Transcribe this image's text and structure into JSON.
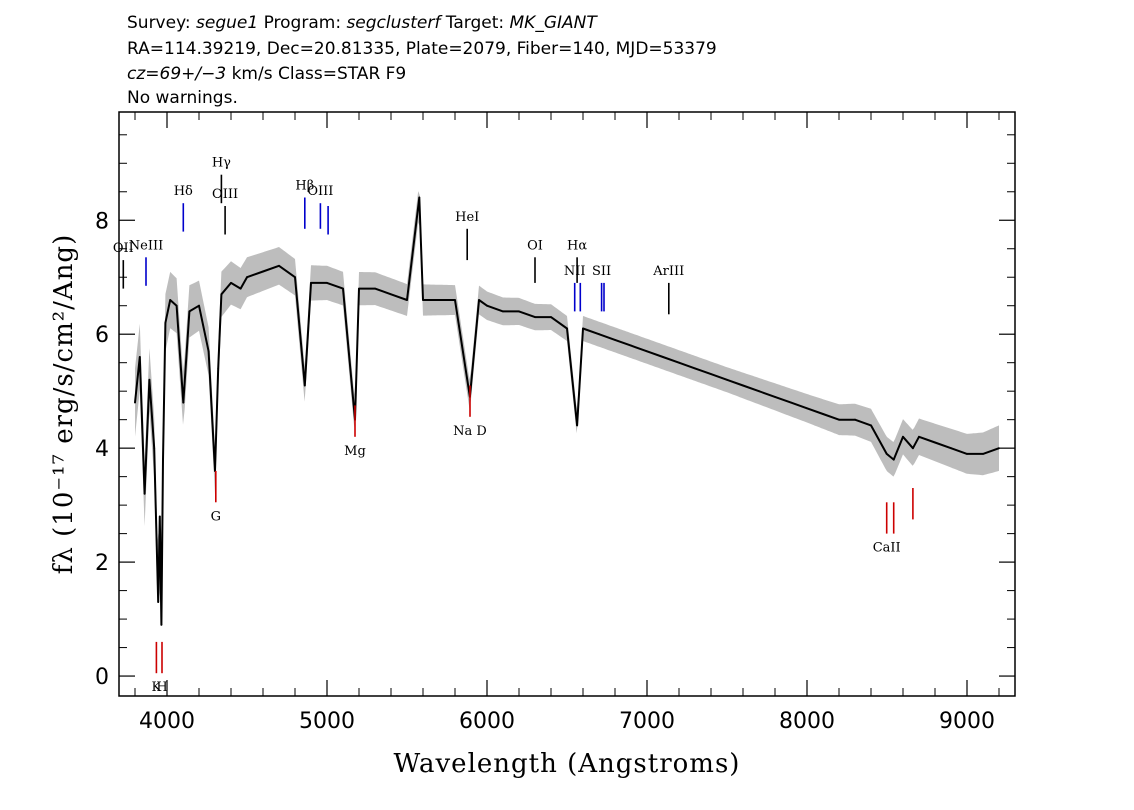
{
  "header": {
    "line1": {
      "survey_label": "Survey: ",
      "survey": "segue1",
      "program_label": " Program: ",
      "program": "segclusterf",
      "target_label": " Target: ",
      "target": "MK_GIANT"
    },
    "line2": "RA=114.39219, Dec=20.81335, Plate=2079, Fiber=140, MJD=53379",
    "line3": {
      "cz": "cz=69+/−3",
      "rest": " km/s Class=STAR F9"
    },
    "line4": "No warnings."
  },
  "chart_data": {
    "type": "line",
    "xlabel": "Wavelength (Angstroms)",
    "ylabel": "fλ (10⁻¹⁷ erg/s/cm²/Ang)",
    "xlim": [
      3700,
      9300
    ],
    "ylim": [
      -0.35,
      9.9
    ],
    "x_ticks": [
      4000,
      5000,
      6000,
      7000,
      8000,
      9000
    ],
    "x_tick_labels": [
      "4000",
      "5000",
      "6000",
      "7000",
      "8000",
      "9000"
    ],
    "y_ticks": [
      0,
      2,
      4,
      6,
      8
    ],
    "y_tick_labels": [
      "0",
      "2",
      "4",
      "6",
      "8"
    ],
    "grid": false,
    "series": [
      {
        "role": "flux",
        "color": "#000000",
        "x": [
          3800,
          3830,
          3860,
          3890,
          3920,
          3945,
          3955,
          3965,
          3975,
          3990,
          4020,
          4060,
          4102,
          4140,
          4200,
          4260,
          4300,
          4320,
          4340,
          4400,
          4460,
          4500,
          4600,
          4700,
          4800,
          4861,
          4900,
          5000,
          5100,
          5175,
          5200,
          5300,
          5400,
          5500,
          5577,
          5600,
          5700,
          5800,
          5893,
          5950,
          6000,
          6100,
          6200,
          6300,
          6400,
          6500,
          6563,
          6600,
          6700,
          6800,
          6900,
          7000,
          7100,
          7200,
          7300,
          7400,
          7500,
          7600,
          7700,
          7800,
          7900,
          8000,
          8100,
          8200,
          8300,
          8400,
          8498,
          8542,
          8600,
          8662,
          8700,
          8800,
          8900,
          9000,
          9100,
          9200
        ],
        "y": [
          4.8,
          5.6,
          3.2,
          5.2,
          4.0,
          1.3,
          2.8,
          0.9,
          3.8,
          6.2,
          6.6,
          6.5,
          4.8,
          6.4,
          6.5,
          5.7,
          3.6,
          5.4,
          6.7,
          6.9,
          6.8,
          7.0,
          7.1,
          7.2,
          7.0,
          5.1,
          6.9,
          6.9,
          6.8,
          4.5,
          6.8,
          6.8,
          6.7,
          6.6,
          8.4,
          6.6,
          6.6,
          6.6,
          4.9,
          6.6,
          6.5,
          6.4,
          6.4,
          6.3,
          6.3,
          6.1,
          4.4,
          6.1,
          6.0,
          5.9,
          5.8,
          5.7,
          5.6,
          5.5,
          5.4,
          5.3,
          5.2,
          5.1,
          5.0,
          4.9,
          4.8,
          4.7,
          4.6,
          4.5,
          4.5,
          4.4,
          3.9,
          3.8,
          4.2,
          4.0,
          4.2,
          4.1,
          4.0,
          3.9,
          3.9,
          4.0
        ]
      },
      {
        "role": "error-band",
        "color": "#bdbdbd",
        "x": [
          3800,
          4000,
          4500,
          5000,
          5500,
          6000,
          6500,
          7000,
          7500,
          8000,
          8500,
          9000,
          9200
        ],
        "half_width": [
          0.6,
          0.5,
          0.35,
          0.3,
          0.28,
          0.25,
          0.22,
          0.22,
          0.22,
          0.25,
          0.3,
          0.35,
          0.4
        ]
      }
    ],
    "line_markers": [
      {
        "label": "OII",
        "wavelength": 3727,
        "type": "emission",
        "color": "#000000",
        "y_bottom": 6.8,
        "y_top": 7.3
      },
      {
        "label": "NeIII",
        "wavelength": 3869,
        "type": "emission",
        "color": "#0000cc",
        "y_bottom": 6.85,
        "y_top": 7.35
      },
      {
        "label": "Hδ",
        "wavelength": 4102,
        "type": "emission",
        "color": "#0000cc",
        "y_bottom": 7.8,
        "y_top": 8.3
      },
      {
        "label": "Hγ",
        "wavelength": 4340,
        "type": "emission",
        "color": "#000000",
        "y_bottom": 8.3,
        "y_top": 8.8
      },
      {
        "label": "OIII",
        "wavelength": 4363,
        "type": "emission",
        "color": "#000000",
        "y_bottom": 7.75,
        "y_top": 8.25
      },
      {
        "label": "Hβ",
        "wavelength": 4861,
        "type": "emission",
        "color": "#0000cc",
        "y_bottom": 7.85,
        "y_top": 8.4
      },
      {
        "label": "OIII",
        "wavelength": 4959,
        "type": "emission",
        "color": "#0000cc",
        "y_bottom": 7.85,
        "y_top": 8.3
      },
      {
        "label": "",
        "wavelength": 5007,
        "type": "emission",
        "color": "#0000cc",
        "y_bottom": 7.75,
        "y_top": 8.25
      },
      {
        "label": "HeI",
        "wavelength": 5876,
        "type": "emission",
        "color": "#000000",
        "y_bottom": 7.3,
        "y_top": 7.85
      },
      {
        "label": "OI",
        "wavelength": 6300,
        "type": "emission",
        "color": "#000000",
        "y_bottom": 6.9,
        "y_top": 7.35
      },
      {
        "label": "NII",
        "wavelength": 6548,
        "type": "emission",
        "color": "#0000cc",
        "y_bottom": 6.4,
        "y_top": 6.9
      },
      {
        "label": "Hα",
        "wavelength": 6563,
        "type": "emission",
        "color": "#000000",
        "y_bottom": 6.9,
        "y_top": 7.35
      },
      {
        "label": "",
        "wavelength": 6583,
        "type": "emission",
        "color": "#0000cc",
        "y_bottom": 6.4,
        "y_top": 6.9
      },
      {
        "label": "SII",
        "wavelength": 6716,
        "type": "emission",
        "color": "#0000cc",
        "y_bottom": 6.4,
        "y_top": 6.9
      },
      {
        "label": "",
        "wavelength": 6731,
        "type": "emission",
        "color": "#0000cc",
        "y_bottom": 6.4,
        "y_top": 6.9
      },
      {
        "label": "ArIII",
        "wavelength": 7136,
        "type": "emission",
        "color": "#000000",
        "y_bottom": 6.35,
        "y_top": 6.9
      },
      {
        "label": "K",
        "wavelength": 3934,
        "type": "absorption",
        "color": "#cc0000",
        "y_bottom": 0.05,
        "y_top": 0.6
      },
      {
        "label": "H",
        "wavelength": 3969,
        "type": "absorption",
        "color": "#cc0000",
        "y_bottom": 0.05,
        "y_top": 0.6
      },
      {
        "label": "G",
        "wavelength": 4305,
        "type": "absorption",
        "color": "#cc0000",
        "y_bottom": 3.05,
        "y_top": 3.6
      },
      {
        "label": "Mg",
        "wavelength": 5175,
        "type": "absorption",
        "color": "#cc0000",
        "y_bottom": 4.2,
        "y_top": 4.75
      },
      {
        "label": "Na D",
        "wavelength": 5894,
        "type": "absorption",
        "color": "#cc0000",
        "y_bottom": 4.55,
        "y_top": 5.1
      },
      {
        "label": "CaII",
        "wavelength": 8498,
        "type": "absorption",
        "color": "#cc0000",
        "y_bottom": 2.5,
        "y_top": 3.05
      },
      {
        "label": "",
        "wavelength": 8542,
        "type": "absorption",
        "color": "#cc0000",
        "y_bottom": 2.5,
        "y_top": 3.05
      },
      {
        "label": "",
        "wavelength": 8662,
        "type": "absorption",
        "color": "#cc0000",
        "y_bottom": 2.75,
        "y_top": 3.3
      }
    ]
  }
}
